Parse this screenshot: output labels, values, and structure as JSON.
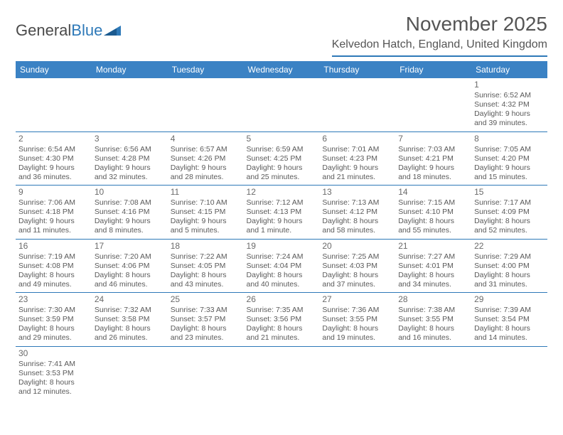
{
  "logo": {
    "text1": "General",
    "text2": "Blue"
  },
  "title": "November 2025",
  "location": "Kelvedon Hatch, England, United Kingdom",
  "colors": {
    "header_bg": "#3b82c4",
    "header_text": "#ffffff",
    "rule": "#2e79b8",
    "body_text": "#5a5a5a",
    "title_text": "#555555"
  },
  "weekdays": [
    "Sunday",
    "Monday",
    "Tuesday",
    "Wednesday",
    "Thursday",
    "Friday",
    "Saturday"
  ],
  "weeks": [
    [
      null,
      null,
      null,
      null,
      null,
      null,
      {
        "n": "1",
        "sr": "Sunrise: 6:52 AM",
        "ss": "Sunset: 4:32 PM",
        "d1": "Daylight: 9 hours",
        "d2": "and 39 minutes."
      }
    ],
    [
      {
        "n": "2",
        "sr": "Sunrise: 6:54 AM",
        "ss": "Sunset: 4:30 PM",
        "d1": "Daylight: 9 hours",
        "d2": "and 36 minutes."
      },
      {
        "n": "3",
        "sr": "Sunrise: 6:56 AM",
        "ss": "Sunset: 4:28 PM",
        "d1": "Daylight: 9 hours",
        "d2": "and 32 minutes."
      },
      {
        "n": "4",
        "sr": "Sunrise: 6:57 AM",
        "ss": "Sunset: 4:26 PM",
        "d1": "Daylight: 9 hours",
        "d2": "and 28 minutes."
      },
      {
        "n": "5",
        "sr": "Sunrise: 6:59 AM",
        "ss": "Sunset: 4:25 PM",
        "d1": "Daylight: 9 hours",
        "d2": "and 25 minutes."
      },
      {
        "n": "6",
        "sr": "Sunrise: 7:01 AM",
        "ss": "Sunset: 4:23 PM",
        "d1": "Daylight: 9 hours",
        "d2": "and 21 minutes."
      },
      {
        "n": "7",
        "sr": "Sunrise: 7:03 AM",
        "ss": "Sunset: 4:21 PM",
        "d1": "Daylight: 9 hours",
        "d2": "and 18 minutes."
      },
      {
        "n": "8",
        "sr": "Sunrise: 7:05 AM",
        "ss": "Sunset: 4:20 PM",
        "d1": "Daylight: 9 hours",
        "d2": "and 15 minutes."
      }
    ],
    [
      {
        "n": "9",
        "sr": "Sunrise: 7:06 AM",
        "ss": "Sunset: 4:18 PM",
        "d1": "Daylight: 9 hours",
        "d2": "and 11 minutes."
      },
      {
        "n": "10",
        "sr": "Sunrise: 7:08 AM",
        "ss": "Sunset: 4:16 PM",
        "d1": "Daylight: 9 hours",
        "d2": "and 8 minutes."
      },
      {
        "n": "11",
        "sr": "Sunrise: 7:10 AM",
        "ss": "Sunset: 4:15 PM",
        "d1": "Daylight: 9 hours",
        "d2": "and 5 minutes."
      },
      {
        "n": "12",
        "sr": "Sunrise: 7:12 AM",
        "ss": "Sunset: 4:13 PM",
        "d1": "Daylight: 9 hours",
        "d2": "and 1 minute."
      },
      {
        "n": "13",
        "sr": "Sunrise: 7:13 AM",
        "ss": "Sunset: 4:12 PM",
        "d1": "Daylight: 8 hours",
        "d2": "and 58 minutes."
      },
      {
        "n": "14",
        "sr": "Sunrise: 7:15 AM",
        "ss": "Sunset: 4:10 PM",
        "d1": "Daylight: 8 hours",
        "d2": "and 55 minutes."
      },
      {
        "n": "15",
        "sr": "Sunrise: 7:17 AM",
        "ss": "Sunset: 4:09 PM",
        "d1": "Daylight: 8 hours",
        "d2": "and 52 minutes."
      }
    ],
    [
      {
        "n": "16",
        "sr": "Sunrise: 7:19 AM",
        "ss": "Sunset: 4:08 PM",
        "d1": "Daylight: 8 hours",
        "d2": "and 49 minutes."
      },
      {
        "n": "17",
        "sr": "Sunrise: 7:20 AM",
        "ss": "Sunset: 4:06 PM",
        "d1": "Daylight: 8 hours",
        "d2": "and 46 minutes."
      },
      {
        "n": "18",
        "sr": "Sunrise: 7:22 AM",
        "ss": "Sunset: 4:05 PM",
        "d1": "Daylight: 8 hours",
        "d2": "and 43 minutes."
      },
      {
        "n": "19",
        "sr": "Sunrise: 7:24 AM",
        "ss": "Sunset: 4:04 PM",
        "d1": "Daylight: 8 hours",
        "d2": "and 40 minutes."
      },
      {
        "n": "20",
        "sr": "Sunrise: 7:25 AM",
        "ss": "Sunset: 4:03 PM",
        "d1": "Daylight: 8 hours",
        "d2": "and 37 minutes."
      },
      {
        "n": "21",
        "sr": "Sunrise: 7:27 AM",
        "ss": "Sunset: 4:01 PM",
        "d1": "Daylight: 8 hours",
        "d2": "and 34 minutes."
      },
      {
        "n": "22",
        "sr": "Sunrise: 7:29 AM",
        "ss": "Sunset: 4:00 PM",
        "d1": "Daylight: 8 hours",
        "d2": "and 31 minutes."
      }
    ],
    [
      {
        "n": "23",
        "sr": "Sunrise: 7:30 AM",
        "ss": "Sunset: 3:59 PM",
        "d1": "Daylight: 8 hours",
        "d2": "and 29 minutes."
      },
      {
        "n": "24",
        "sr": "Sunrise: 7:32 AM",
        "ss": "Sunset: 3:58 PM",
        "d1": "Daylight: 8 hours",
        "d2": "and 26 minutes."
      },
      {
        "n": "25",
        "sr": "Sunrise: 7:33 AM",
        "ss": "Sunset: 3:57 PM",
        "d1": "Daylight: 8 hours",
        "d2": "and 23 minutes."
      },
      {
        "n": "26",
        "sr": "Sunrise: 7:35 AM",
        "ss": "Sunset: 3:56 PM",
        "d1": "Daylight: 8 hours",
        "d2": "and 21 minutes."
      },
      {
        "n": "27",
        "sr": "Sunrise: 7:36 AM",
        "ss": "Sunset: 3:55 PM",
        "d1": "Daylight: 8 hours",
        "d2": "and 19 minutes."
      },
      {
        "n": "28",
        "sr": "Sunrise: 7:38 AM",
        "ss": "Sunset: 3:55 PM",
        "d1": "Daylight: 8 hours",
        "d2": "and 16 minutes."
      },
      {
        "n": "29",
        "sr": "Sunrise: 7:39 AM",
        "ss": "Sunset: 3:54 PM",
        "d1": "Daylight: 8 hours",
        "d2": "and 14 minutes."
      }
    ],
    [
      {
        "n": "30",
        "sr": "Sunrise: 7:41 AM",
        "ss": "Sunset: 3:53 PM",
        "d1": "Daylight: 8 hours",
        "d2": "and 12 minutes."
      },
      null,
      null,
      null,
      null,
      null,
      null
    ]
  ]
}
